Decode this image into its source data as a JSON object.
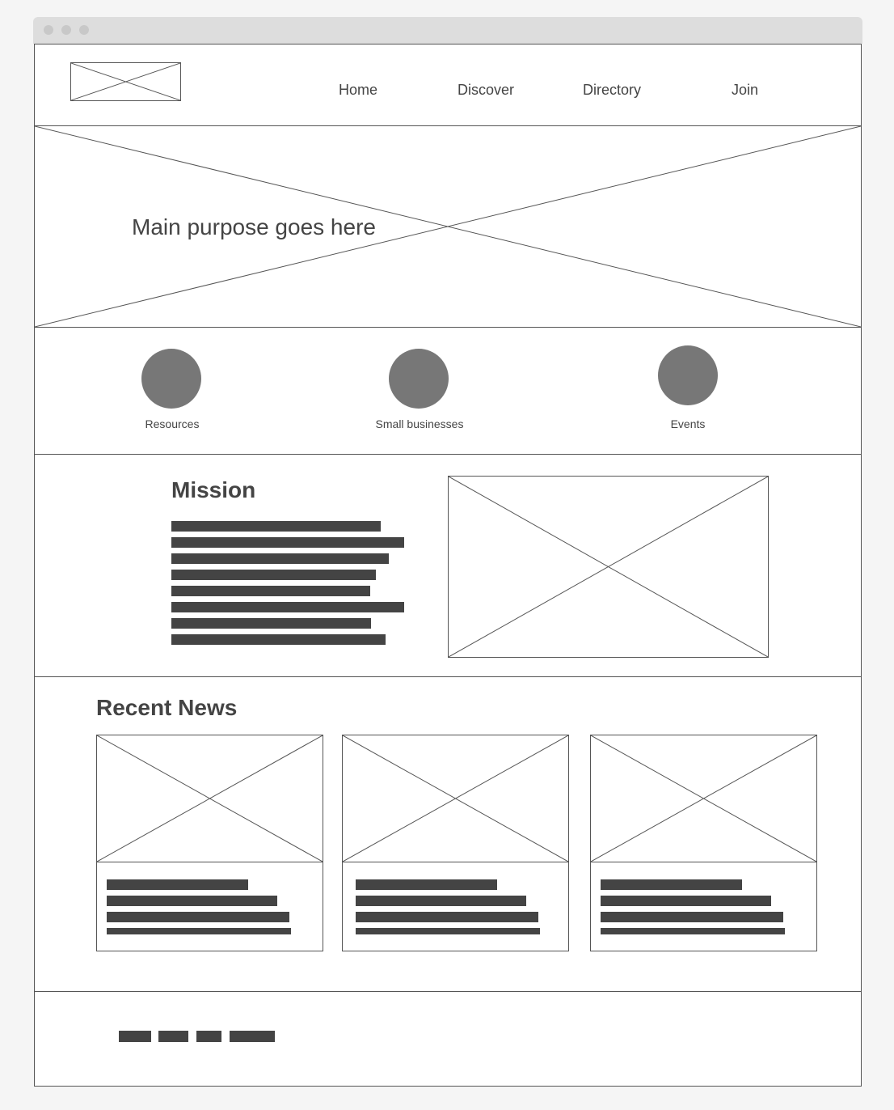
{
  "nav": {
    "logo": "logo placeholder",
    "links": [
      "Home",
      "Discover",
      "Directory",
      "Join"
    ]
  },
  "hero": {
    "title": "Main purpose goes here"
  },
  "features": {
    "items": [
      "Resources",
      "Small businesses",
      "Events"
    ]
  },
  "mission": {
    "heading": "Mission"
  },
  "news": {
    "heading": "Recent News"
  },
  "colors": {
    "circle": "#777777",
    "text_bar": "#444444",
    "border": "#555555"
  }
}
